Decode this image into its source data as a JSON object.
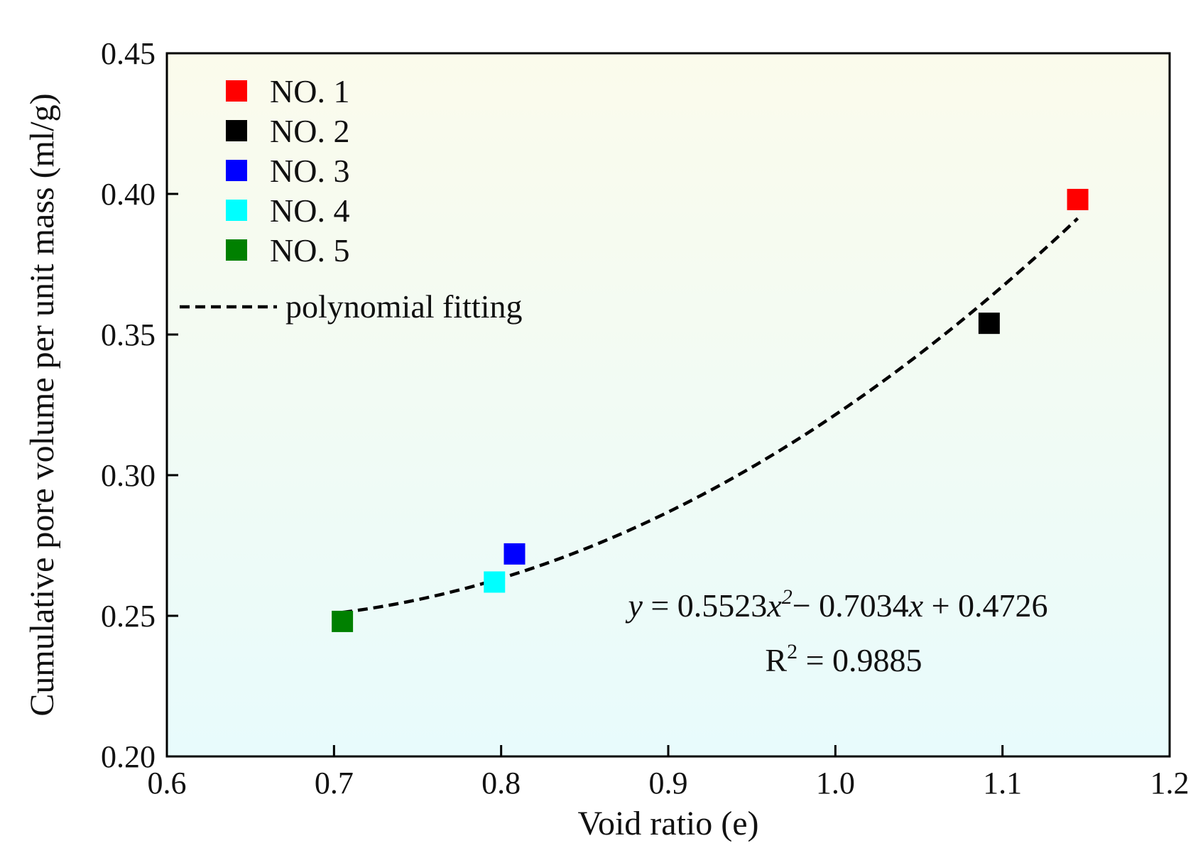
{
  "chart_data": {
    "type": "scatter",
    "xlabel": "Void ratio (e)",
    "ylabel": "Cumulative pore volume per unit mass (ml/g)",
    "xlim": [
      0.6,
      1.2
    ],
    "ylim": [
      0.2,
      0.45
    ],
    "xticks": [
      0.6,
      0.7,
      0.8,
      0.9,
      1.0,
      1.1,
      1.2
    ],
    "xtick_labels": [
      "0.6",
      "0.7",
      "0.8",
      "0.9",
      "1.0",
      "1.1",
      "1.2"
    ],
    "yticks": [
      0.2,
      0.25,
      0.3,
      0.35,
      0.4,
      0.45
    ],
    "ytick_labels": [
      "0.20",
      "0.25",
      "0.30",
      "0.35",
      "0.40",
      "0.45"
    ],
    "series": [
      {
        "name": "NO. 1",
        "color": "#ff0000",
        "x": 1.145,
        "y": 0.398
      },
      {
        "name": "NO. 2",
        "color": "#000000",
        "x": 1.092,
        "y": 0.354
      },
      {
        "name": "NO. 3",
        "color": "#0000ff",
        "x": 0.808,
        "y": 0.272
      },
      {
        "name": "NO. 4",
        "color": "#00ffff",
        "x": 0.796,
        "y": 0.262
      },
      {
        "name": "NO. 5",
        "color": "#008000",
        "x": 0.705,
        "y": 0.248
      }
    ],
    "fit": {
      "label": "polynomial fitting",
      "coefficients": [
        0.5523,
        -0.7034,
        0.4726
      ],
      "x_range": [
        0.705,
        1.145
      ],
      "equation": {
        "y": "y",
        "eq1": " = 0.5523",
        "x1": "x",
        "sup1": "2",
        "eq2": "− 0.7034",
        "x2": "x",
        "eq3": " + 0.4726"
      },
      "r2": {
        "r": "R",
        "sup": "2",
        "value": " = 0.9885"
      }
    },
    "background": {
      "top": "#fbfbec",
      "bottom": "#e8fbfc"
    },
    "legend_position": "top-left"
  }
}
